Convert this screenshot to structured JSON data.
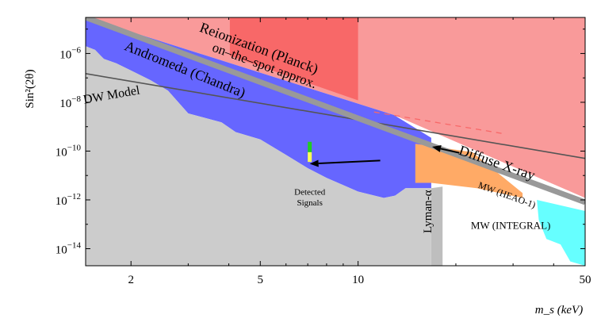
{
  "chart_data": {
    "type": "area",
    "xlabel": "m_s (keV)",
    "ylabel": "Sin²(2θ)",
    "x_scale": "log",
    "y_scale": "log",
    "xlim": [
      1.45,
      50
    ],
    "ylim": [
      2e-15,
      3e-05
    ],
    "x_ticks": [
      {
        "value": 2,
        "label": "2"
      },
      {
        "value": 5,
        "label": "5"
      },
      {
        "value": 10,
        "label": "10"
      },
      {
        "value": 50,
        "label": "50"
      }
    ],
    "y_ticks": [
      {
        "value": 1e-06,
        "mantissa": "10",
        "exponent": "−6"
      },
      {
        "value": 1e-08,
        "mantissa": "10",
        "exponent": "−8"
      },
      {
        "value": 1e-10,
        "mantissa": "10",
        "exponent": "−10"
      },
      {
        "value": 1e-12,
        "mantissa": "10",
        "exponent": "−12"
      },
      {
        "value": 1e-14,
        "mantissa": "10",
        "exponent": "−14"
      }
    ],
    "regions": [
      {
        "name": "Excluded (general)",
        "color": "#f99a9a",
        "polygon": [
          [
            1.45,
            3e-05
          ],
          [
            50,
            3e-05
          ],
          [
            50,
            1.2e-12
          ],
          [
            12.9,
            3e-09
          ],
          [
            1.45,
            3e-05
          ]
        ]
      },
      {
        "name": "Reionization (Planck)",
        "color": "#f86868",
        "polygon": [
          [
            4.03,
            3e-05
          ],
          [
            10,
            3e-05
          ],
          [
            10,
            1.2e-08
          ],
          [
            4.03,
            8e-07
          ]
        ]
      },
      {
        "name": "Andromeda (Chandra)",
        "color": "#6666ff",
        "polygon": [
          [
            1.45,
            3e-05
          ],
          [
            1.45,
            2e-06
          ],
          [
            1.55,
            1.4e-06
          ],
          [
            1.65,
            6e-07
          ],
          [
            1.8,
            4e-07
          ],
          [
            2.0,
            2e-07
          ],
          [
            2.3,
            8e-08
          ],
          [
            2.6,
            3e-08
          ],
          [
            3.0,
            3.5e-09
          ],
          [
            3.3,
            2.5e-09
          ],
          [
            3.8,
            1.5e-09
          ],
          [
            4.2,
            6e-10
          ],
          [
            5.0,
            3e-10
          ],
          [
            6.0,
            7e-11
          ],
          [
            7.0,
            2e-11
          ],
          [
            8.0,
            8e-12
          ],
          [
            10.0,
            2.2e-12
          ],
          [
            12.0,
            1.2e-12
          ],
          [
            13.0,
            1.5e-12
          ],
          [
            14.0,
            3e-12
          ],
          [
            16.8,
            3e-12
          ],
          [
            16.8,
            3.5e-10
          ],
          [
            12.9,
            3e-09
          ],
          [
            1.45,
            3e-05
          ]
        ]
      },
      {
        "name": "Diffuse X-ray",
        "color": "#ffaa66",
        "polygon": [
          [
            15.0,
            2e-10
          ],
          [
            22.5,
            9e-11
          ],
          [
            32.1,
            1.9e-12
          ],
          [
            32.1,
            1.2e-12
          ],
          [
            23.2,
            3e-12
          ],
          [
            16.8,
            5e-12
          ],
          [
            15.0,
            5e-12
          ]
        ]
      },
      {
        "name": "MW (INTEGRAL)",
        "color": "#66ffff",
        "polygon": [
          [
            35.5,
            1e-12
          ],
          [
            50,
            3.5e-13
          ],
          [
            50,
            2e-15
          ],
          [
            45,
            3e-15
          ],
          [
            42,
            1.5e-14
          ],
          [
            38,
            2.5e-14
          ],
          [
            36,
            1.5e-13
          ],
          [
            35.5,
            1e-12
          ]
        ]
      },
      {
        "name": "Lyman-α",
        "color": "#bebebe",
        "polygon": [
          [
            16.8,
            3e-12
          ],
          [
            18.2,
            3.5e-12
          ],
          [
            18.2,
            2e-15
          ],
          [
            16.8,
            2e-15
          ]
        ]
      },
      {
        "name": "DW Model region",
        "color": "#cccccc",
        "polygon": [
          [
            1.45,
            2e-06
          ],
          [
            1.55,
            1.4e-06
          ],
          [
            1.65,
            6e-07
          ],
          [
            1.8,
            4e-07
          ],
          [
            2.0,
            2e-07
          ],
          [
            2.3,
            8e-08
          ],
          [
            2.6,
            3e-08
          ],
          [
            3.0,
            3.5e-09
          ],
          [
            3.3,
            2.5e-09
          ],
          [
            3.8,
            1.5e-09
          ],
          [
            4.2,
            6e-10
          ],
          [
            5.0,
            3e-10
          ],
          [
            6.0,
            7e-11
          ],
          [
            7.0,
            2e-11
          ],
          [
            8.0,
            8e-12
          ],
          [
            10.0,
            2.2e-12
          ],
          [
            12.0,
            1.2e-12
          ],
          [
            13.0,
            1.5e-12
          ],
          [
            14.0,
            3e-12
          ],
          [
            16.8,
            3e-12
          ],
          [
            16.8,
            2e-15
          ],
          [
            1.45,
            2e-15
          ]
        ]
      }
    ],
    "lines": [
      {
        "name": "DW Model",
        "color": "#555555",
        "points": [
          [
            1.45,
            1.5e-07
          ],
          [
            50,
            5e-11
          ]
        ]
      },
      {
        "name": "boundary",
        "color": "#999999",
        "points": [
          [
            1.45,
            3e-05
          ],
          [
            50,
            8e-13
          ]
        ]
      },
      {
        "name": "Reionization (Planck) extension",
        "color": "#f86868",
        "dashed": true,
        "points": [
          [
            11.2,
            4e-09
          ],
          [
            28.5,
            5e-10
          ]
        ]
      }
    ],
    "detected_signals": {
      "x": 7.1,
      "values": [
        1.5e-10,
        6e-11
      ],
      "colors": [
        "#22cc22",
        "#ffff55"
      ]
    },
    "annotations": [
      {
        "text": "Reionization (Planck)",
        "x": 4.9,
        "y": 1.1e-06,
        "angle": 20
      },
      {
        "text": "on–the–spot approx.",
        "x": 5.1,
        "y": 2.2e-07,
        "angle": 20
      },
      {
        "text": "Andromeda (Chandra)",
        "x": 2.9,
        "y": 1.5e-07,
        "angle": 22
      },
      {
        "text": "DW Model",
        "x": 1.75,
        "y": 1.4e-08,
        "angle": -10
      },
      {
        "text": "Diffuse X-ray",
        "x": 26.5,
        "y": 2.2e-11,
        "angle": 19
      },
      {
        "text": "MW (HEAO-1)",
        "x": 28.5,
        "y": 1.2e-12,
        "angle": 20
      },
      {
        "text": "MW (INTEGRAL)",
        "x": 29.5,
        "y": 6.5e-14,
        "angle": 0
      },
      {
        "text": "Lyman-α",
        "x": 16.8,
        "y": 3.3e-13,
        "angle": -90
      },
      {
        "text": "Detected",
        "x": 7.1,
        "y": 1.6e-12,
        "angle": 0
      },
      {
        "text": "Signals",
        "x": 7.1,
        "y": 6e-13,
        "angle": 0
      }
    ],
    "arrows": [
      {
        "from": [
          11.7,
          4.1e-11
        ],
        "to": [
          7.1,
          3e-11
        ]
      },
      {
        "from": [
          20.5,
          8.5e-11
        ],
        "to": [
          16.9,
          1.5e-10
        ]
      }
    ]
  }
}
